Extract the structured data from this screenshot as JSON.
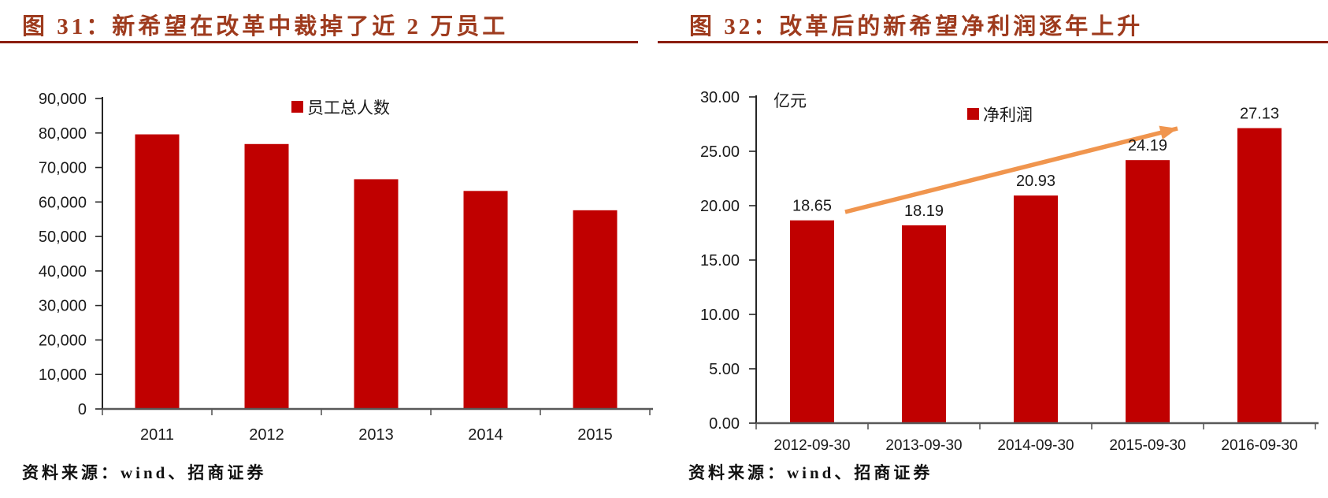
{
  "page": {
    "background": "#FFFFFF"
  },
  "colors": {
    "bar_red": "#C00000",
    "title_red": "#9E3B1E",
    "rule_red": "#8B1D0F",
    "arrow_orange": "#F0954E",
    "axis_dark": "#262626",
    "baseline_gray": "#595959",
    "label_dark": "#1A1A1A"
  },
  "figures": [
    {
      "title": "图 31：新希望在改革中裁掉了近 2 万员工",
      "source": "资料来源：wind、招商证券"
    },
    {
      "title": "图 32：改革后的新希望净利润逐年上升",
      "source": "资料来源：wind、招商证券"
    }
  ],
  "chart_data": [
    {
      "type": "bar",
      "title": "图 31：新希望在改革中裁掉了近 2 万员工",
      "categories": [
        "2011",
        "2012",
        "2013",
        "2014",
        "2015"
      ],
      "values": [
        79600,
        76800,
        66600,
        63200,
        57600
      ],
      "values_note": "estimated from axis; no data labels printed",
      "legend": [
        "员工总人数"
      ],
      "legend_position": "top-center",
      "bar_color": "#C00000",
      "xlabel": "",
      "ylabel": "",
      "ylim": [
        0,
        90000
      ],
      "yticks": [
        "0",
        "10,000",
        "20,000",
        "30,000",
        "40,000",
        "50,000",
        "60,000",
        "70,000",
        "80,000",
        "90,000"
      ],
      "grid": false
    },
    {
      "type": "bar",
      "title": "图 32：改革后的新希望净利润逐年上升",
      "categories": [
        "2012-09-30",
        "2013-09-30",
        "2014-09-30",
        "2015-09-30",
        "2016-09-30"
      ],
      "values": [
        18.65,
        18.19,
        20.93,
        24.19,
        27.13
      ],
      "data_labels": [
        "18.65",
        "18.19",
        "20.93",
        "24.19",
        "27.13"
      ],
      "legend": [
        "净利润"
      ],
      "legend_position": "top-center",
      "unit_label": "亿元",
      "bar_color": "#C00000",
      "xlabel": "",
      "ylabel": "",
      "ylim": [
        0,
        30
      ],
      "yticks": [
        "0.00",
        "5.00",
        "10.00",
        "15.00",
        "20.00",
        "25.00",
        "30.00"
      ],
      "grid": false,
      "trend_arrow": {
        "present": true,
        "color": "#F0954E",
        "direction": "up-right"
      }
    }
  ]
}
